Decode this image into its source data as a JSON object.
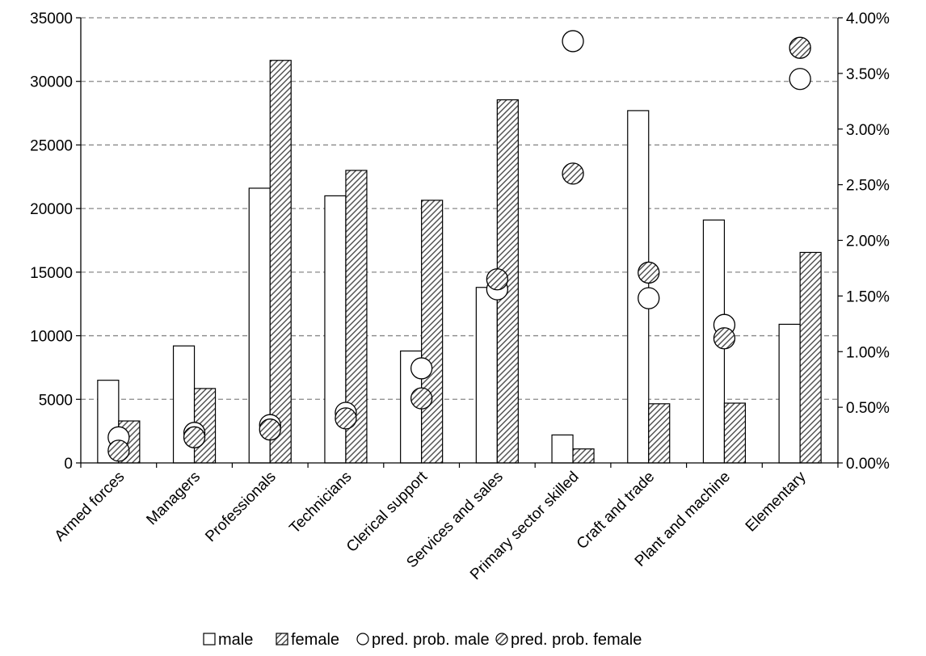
{
  "chart_data": {
    "type": "bar",
    "categories": [
      "Armed forces",
      "Managers",
      "Professionals",
      "Technicians",
      "Clerical support",
      "Services and sales",
      "Primary sector skilled",
      "Craft and trade",
      "Plant and machine",
      "Elementary"
    ],
    "series": [
      {
        "name": "male",
        "kind": "bar",
        "axis": "left",
        "fill": "#ffffff",
        "values": [
          6500,
          9200,
          21600,
          21000,
          8800,
          13800,
          2200,
          27700,
          19100,
          10900
        ]
      },
      {
        "name": "female",
        "kind": "bar",
        "axis": "left",
        "fill": "hatched",
        "values": [
          3300,
          5850,
          31650,
          23000,
          20650,
          28550,
          1100,
          4650,
          4700,
          16550
        ]
      },
      {
        "name": "pred. prob. male",
        "kind": "marker",
        "axis": "right",
        "fill": "#ffffff",
        "values": [
          0.0023,
          0.0027,
          0.0034,
          0.0045,
          0.0085,
          0.0156,
          0.0379,
          0.0148,
          0.0124,
          0.0345
        ]
      },
      {
        "name": "pred. prob. female",
        "kind": "marker",
        "axis": "right",
        "fill": "hatched",
        "values": [
          0.0011,
          0.0023,
          0.003,
          0.004,
          0.0058,
          0.0165,
          0.026,
          0.0171,
          0.0112,
          0.0373
        ]
      }
    ],
    "y_left": {
      "min": 0,
      "max": 35000,
      "ticks": [
        "0",
        "5000",
        "10000",
        "15000",
        "20000",
        "25000",
        "30000",
        "35000"
      ]
    },
    "y_right": {
      "min": 0,
      "max": 0.04,
      "ticks": [
        "0.00%",
        "0.50%",
        "1.00%",
        "1.50%",
        "2.00%",
        "2.50%",
        "3.00%",
        "3.50%",
        "4.00%"
      ]
    },
    "grid": "horizontal dashed",
    "legend": {
      "placement": "bottom",
      "entries": [
        "male",
        "female",
        "pred. prob. male",
        "pred. prob. female"
      ]
    },
    "title": "",
    "xlabel": "",
    "ylabel": ""
  }
}
